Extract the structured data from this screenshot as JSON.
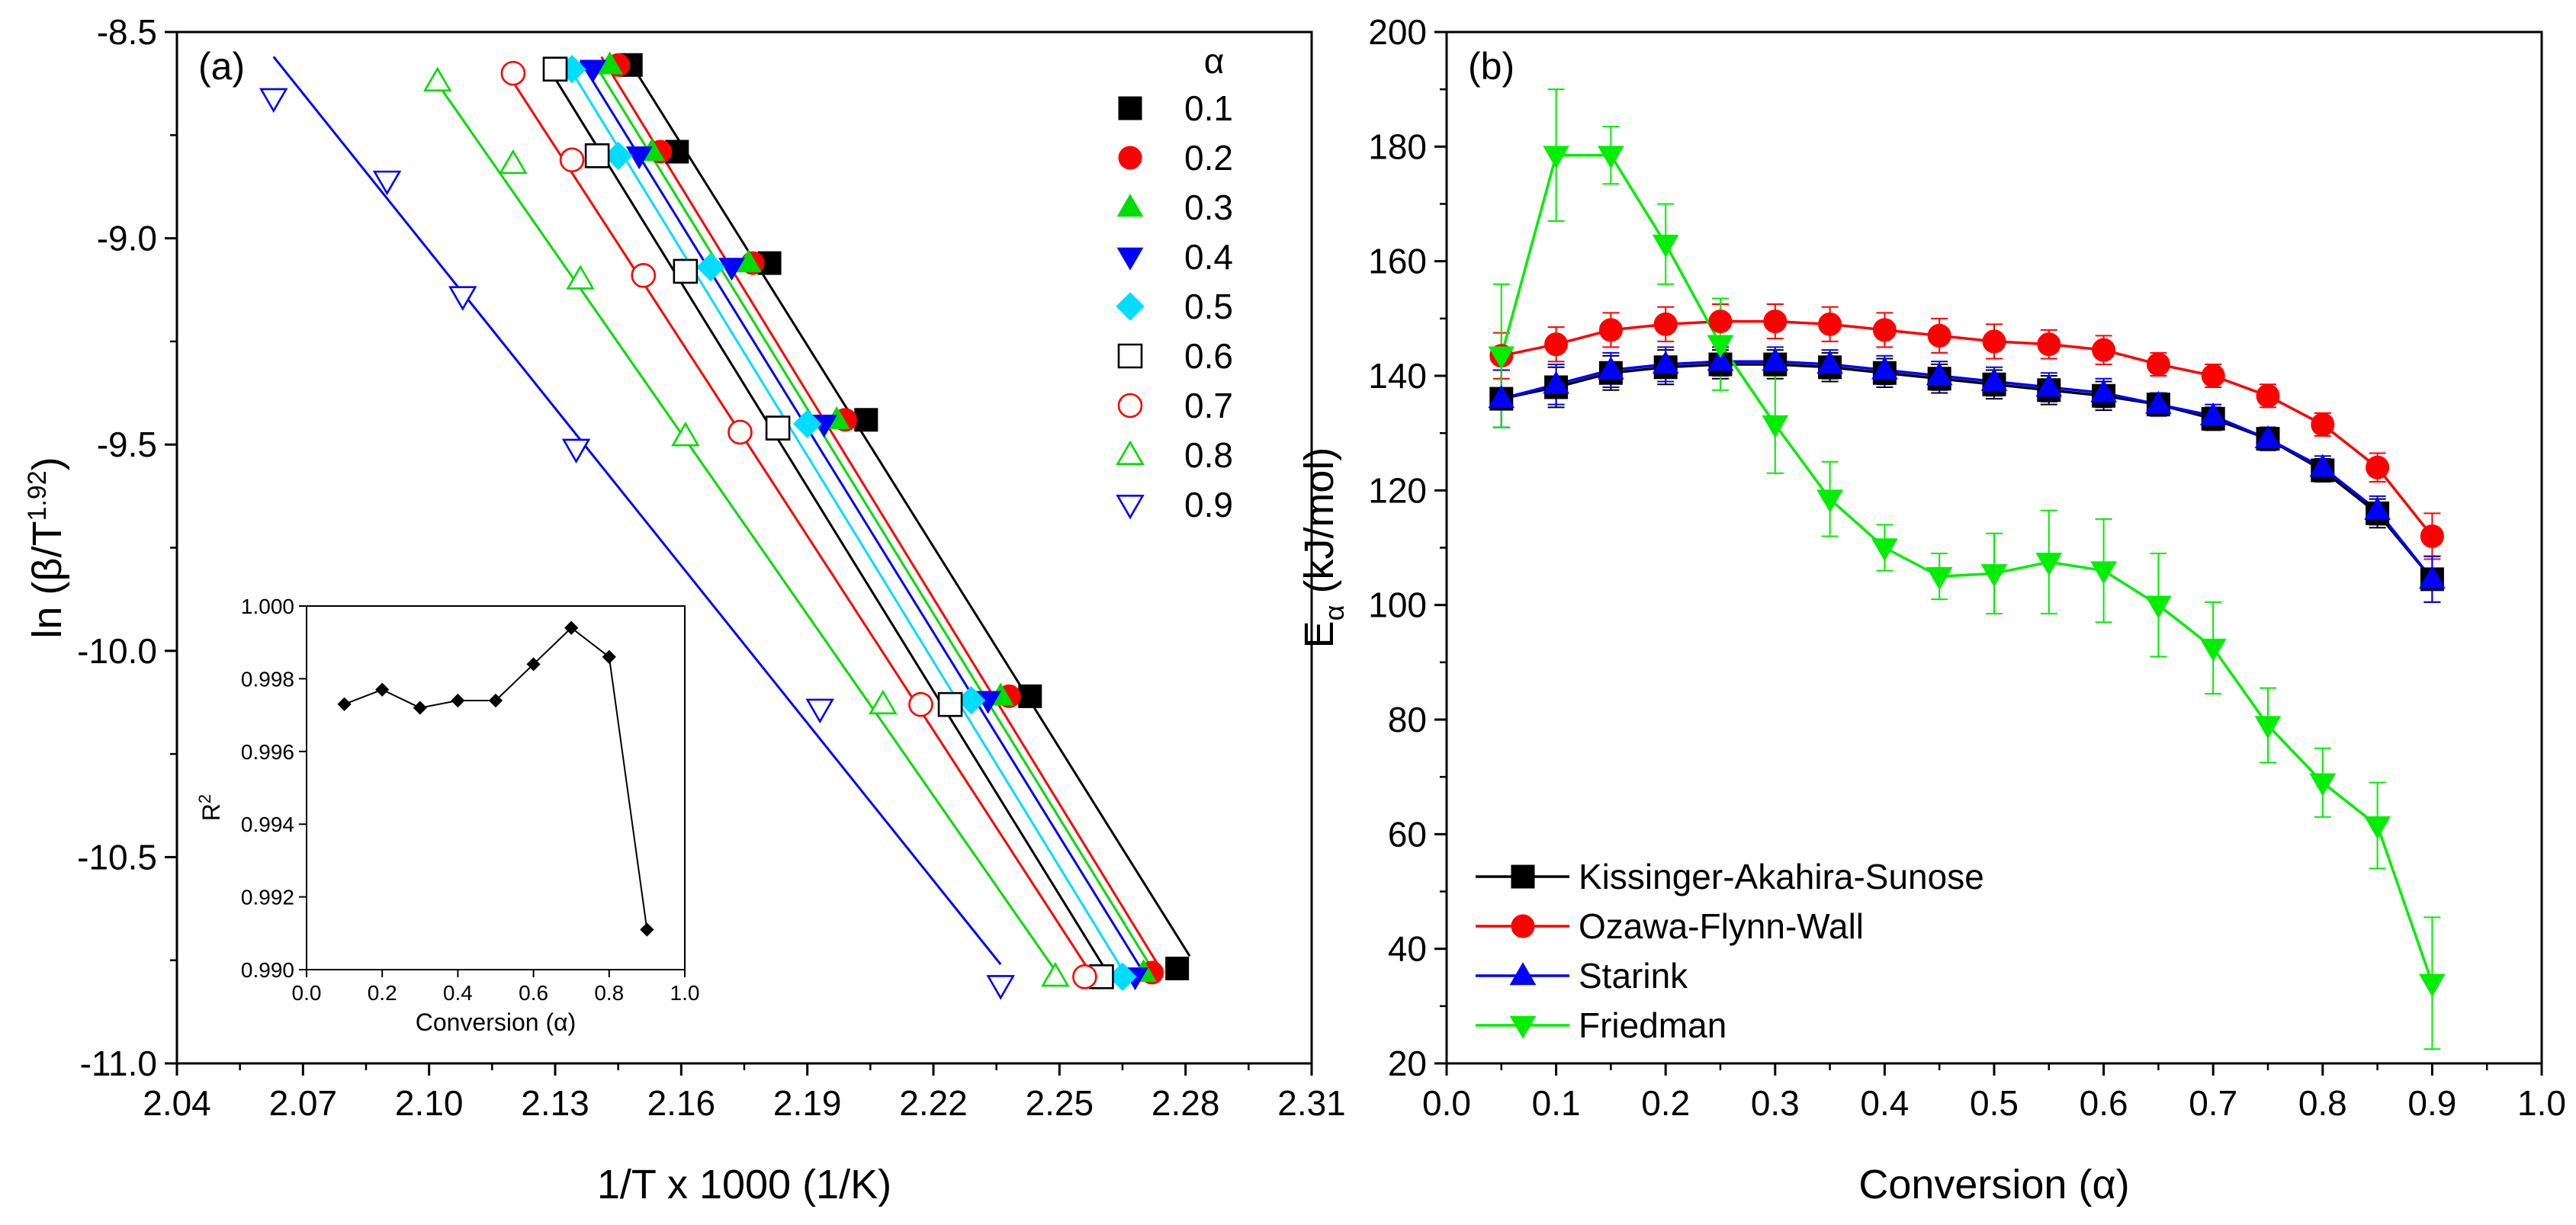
{
  "chart_data": [
    {
      "type": "scatter",
      "panel_label": "(a)",
      "xlabel": "1/T x 1000 (1/K)",
      "ylabel_main": "ln (β/T",
      "ylabel_sup": "1.92",
      "ylabel_close": ")",
      "xlim": [
        2.04,
        2.31
      ],
      "ylim": [
        -11.0,
        -8.5
      ],
      "xticks": [
        2.04,
        2.07,
        2.1,
        2.13,
        2.16,
        2.19,
        2.22,
        2.25,
        2.28,
        2.31
      ],
      "xtick_labels": [
        "2.04",
        "2.07",
        "2.10",
        "2.13",
        "2.16",
        "2.19",
        "2.22",
        "2.25",
        "2.28",
        "2.31"
      ],
      "yticks": [
        -8.5,
        -9.0,
        -9.5,
        -10.0,
        -10.5,
        -11.0
      ],
      "ytick_labels": [
        "-8.5",
        "-9.0",
        "-9.5",
        "-10.0",
        "-10.5",
        "-11.0"
      ],
      "legend_title": "α",
      "legend_position": "top-right",
      "series": [
        {
          "name": "0.1",
          "marker": "square",
          "filled": true,
          "color": "#000000",
          "x": [
            2.148,
            2.159,
            2.181,
            2.204,
            2.243,
            2.278
          ],
          "y": [
            -8.58,
            -8.79,
            -9.06,
            -9.44,
            -10.11,
            -10.77
          ],
          "fit_x": [
            2.147,
            2.281
          ],
          "fit_y": [
            -8.56,
            -10.74
          ]
        },
        {
          "name": "0.2",
          "marker": "circle",
          "filled": true,
          "color": "#ff0000",
          "x": [
            2.145,
            2.155,
            2.177,
            2.199,
            2.238,
            2.272
          ],
          "y": [
            -8.58,
            -8.79,
            -9.06,
            -9.44,
            -10.11,
            -10.78
          ],
          "fit_x": [
            2.141,
            2.274
          ],
          "fit_y": [
            -8.56,
            -10.77
          ]
        },
        {
          "name": "0.3",
          "marker": "triangle-up",
          "filled": true,
          "color": "#00dd00",
          "x": [
            2.143,
            2.153,
            2.176,
            2.197,
            2.236,
            2.27
          ],
          "y": [
            -8.58,
            -8.79,
            -9.06,
            -9.44,
            -10.11,
            -10.78
          ],
          "fit_x": [
            2.139,
            2.272
          ],
          "fit_y": [
            -8.57,
            -10.77
          ]
        },
        {
          "name": "0.4",
          "marker": "triangle-down",
          "filled": true,
          "color": "#0000ff",
          "x": [
            2.139,
            2.15,
            2.172,
            2.194,
            2.233,
            2.268
          ],
          "y": [
            -8.59,
            -8.8,
            -9.07,
            -9.45,
            -10.12,
            -10.79
          ],
          "fit_x": [
            2.136,
            2.27
          ],
          "fit_y": [
            -8.57,
            -10.78
          ]
        },
        {
          "name": "0.5",
          "marker": "diamond",
          "filled": true,
          "color": "#00ddff",
          "x": [
            2.134,
            2.145,
            2.167,
            2.19,
            2.229,
            2.265
          ],
          "y": [
            -8.59,
            -8.8,
            -9.07,
            -9.45,
            -10.12,
            -10.79
          ],
          "fit_x": [
            2.133,
            2.266
          ],
          "fit_y": [
            -8.58,
            -10.79
          ]
        },
        {
          "name": "0.6",
          "marker": "square",
          "filled": false,
          "color": "#000000",
          "x": [
            2.13,
            2.14,
            2.161,
            2.183,
            2.224,
            2.26
          ],
          "y": [
            -8.59,
            -8.8,
            -9.08,
            -9.46,
            -10.13,
            -10.79
          ],
          "fit_x": [
            2.128,
            2.262
          ],
          "fit_y": [
            -8.58,
            -10.79
          ]
        },
        {
          "name": "0.7",
          "marker": "circle",
          "filled": false,
          "color": "#ff0000",
          "x": [
            2.12,
            2.134,
            2.151,
            2.174,
            2.217,
            2.256
          ],
          "y": [
            -8.6,
            -8.81,
            -9.09,
            -9.47,
            -10.13,
            -10.79
          ],
          "fit_x": [
            2.118,
            2.258
          ],
          "fit_y": [
            -8.59,
            -10.79
          ]
        },
        {
          "name": "0.8",
          "marker": "triangle-up",
          "filled": false,
          "color": "#00dd00",
          "x": [
            2.102,
            2.12,
            2.136,
            2.161,
            2.208,
            2.249
          ],
          "y": [
            -8.62,
            -8.82,
            -9.1,
            -9.48,
            -10.13,
            -10.79
          ],
          "fit_x": [
            2.101,
            2.25
          ],
          "fit_y": [
            -8.61,
            -10.79
          ]
        },
        {
          "name": "0.9",
          "marker": "triangle-down",
          "filled": false,
          "color": "#0000ff",
          "x": [
            2.063,
            2.09,
            2.108,
            2.135,
            2.193,
            2.236
          ],
          "y": [
            -8.66,
            -8.86,
            -9.14,
            -9.51,
            -10.14,
            -10.81
          ],
          "fit_x": [
            2.063,
            2.236
          ],
          "fit_y": [
            -8.56,
            -10.76
          ]
        }
      ],
      "inset": {
        "type": "line",
        "xlabel": "Conversion (α)",
        "ylabel_main": "R",
        "ylabel_sup": "2",
        "xlim": [
          0.0,
          1.0
        ],
        "ylim": [
          0.99,
          1.0
        ],
        "xticks": [
          0.0,
          0.2,
          0.4,
          0.6,
          0.8,
          1.0
        ],
        "xtick_labels": [
          "0.0",
          "0.2",
          "0.4",
          "0.6",
          "0.8",
          "1.0"
        ],
        "yticks": [
          0.99,
          0.992,
          0.994,
          0.996,
          0.998,
          1.0
        ],
        "ytick_labels": [
          "0.990",
          "0.992",
          "0.994",
          "0.996",
          "0.998",
          "1.000"
        ],
        "x": [
          0.1,
          0.2,
          0.3,
          0.4,
          0.5,
          0.6,
          0.7,
          0.8,
          0.9
        ],
        "y": [
          0.9973,
          0.9977,
          0.9972,
          0.9974,
          0.9974,
          0.9984,
          0.9994,
          0.9986,
          0.9911
        ]
      }
    },
    {
      "type": "line",
      "panel_label": "(b)",
      "xlabel": "Conversion (α)",
      "ylabel_main": "E",
      "ylabel_sub": "α",
      "ylabel_rest": " (kJ/mol)",
      "xlim": [
        0.0,
        1.0
      ],
      "ylim": [
        20,
        200
      ],
      "xticks": [
        0.0,
        0.1,
        0.2,
        0.3,
        0.4,
        0.5,
        0.6,
        0.7,
        0.8,
        0.9,
        1.0
      ],
      "xtick_labels": [
        "0.0",
        "0.1",
        "0.2",
        "0.3",
        "0.4",
        "0.5",
        "0.6",
        "0.7",
        "0.8",
        "0.9",
        "1.0"
      ],
      "yticks": [
        20,
        40,
        60,
        80,
        100,
        120,
        140,
        160,
        180,
        200
      ],
      "ytick_labels": [
        "20",
        "40",
        "60",
        "80",
        "100",
        "120",
        "140",
        "160",
        "180",
        "200"
      ],
      "legend_position": "bottom-left",
      "x": [
        0.05,
        0.1,
        0.15,
        0.2,
        0.25,
        0.3,
        0.35,
        0.4,
        0.45,
        0.5,
        0.55,
        0.6,
        0.65,
        0.7,
        0.75,
        0.8,
        0.85,
        0.9
      ],
      "series": [
        {
          "name": "Kissinger-Akahira-Sunose",
          "marker": "square",
          "color": "#000000",
          "values": [
            136,
            138,
            140.5,
            141.5,
            142,
            142,
            141.5,
            140.5,
            139.5,
            138.5,
            137.5,
            136.5,
            135,
            132.5,
            129,
            123.5,
            116,
            104.5
          ],
          "errors": [
            5,
            3.5,
            3,
            3,
            2.5,
            2.5,
            2.5,
            2.5,
            2.5,
            2.5,
            2.5,
            2.5,
            2,
            2,
            2,
            2,
            2.5,
            4
          ]
        },
        {
          "name": "Ozawa-Flynn-Wall",
          "marker": "circle",
          "color": "#ff0000",
          "values": [
            143.5,
            145.5,
            148,
            149,
            149.5,
            149.5,
            149,
            148,
            147,
            146,
            145.5,
            144.5,
            142,
            140,
            136.5,
            131.5,
            124,
            112
          ],
          "errors": [
            4,
            3,
            3,
            3,
            3,
            3,
            3,
            3,
            3,
            3,
            2.5,
            2.5,
            2,
            2,
            2,
            2,
            2.5,
            4
          ]
        },
        {
          "name": "Starink",
          "marker": "triangle-up",
          "color": "#0000ff",
          "values": [
            136,
            138.5,
            141,
            142,
            142.5,
            142.5,
            142,
            141,
            140,
            139,
            138,
            137,
            135,
            133,
            129,
            124,
            116.5,
            104.5
          ],
          "errors": [
            5,
            3.5,
            3,
            3,
            2.5,
            2.5,
            2.5,
            2.5,
            2.5,
            2.5,
            2.5,
            2.5,
            2,
            2,
            2,
            2,
            2.5,
            4
          ]
        },
        {
          "name": "Friedman",
          "marker": "triangle-down",
          "color": "#00ee00",
          "values": [
            143.5,
            178.5,
            178.5,
            163,
            145.5,
            131.5,
            118.5,
            110,
            105,
            105.5,
            107.5,
            106,
            100,
            92.5,
            79,
            69,
            61.5,
            34
          ],
          "errors": [
            12.5,
            11.5,
            5,
            7,
            8,
            8.5,
            6.5,
            4,
            4,
            7,
            9,
            9,
            9,
            8,
            6.5,
            6,
            7.5,
            11.5
          ]
        }
      ]
    }
  ]
}
